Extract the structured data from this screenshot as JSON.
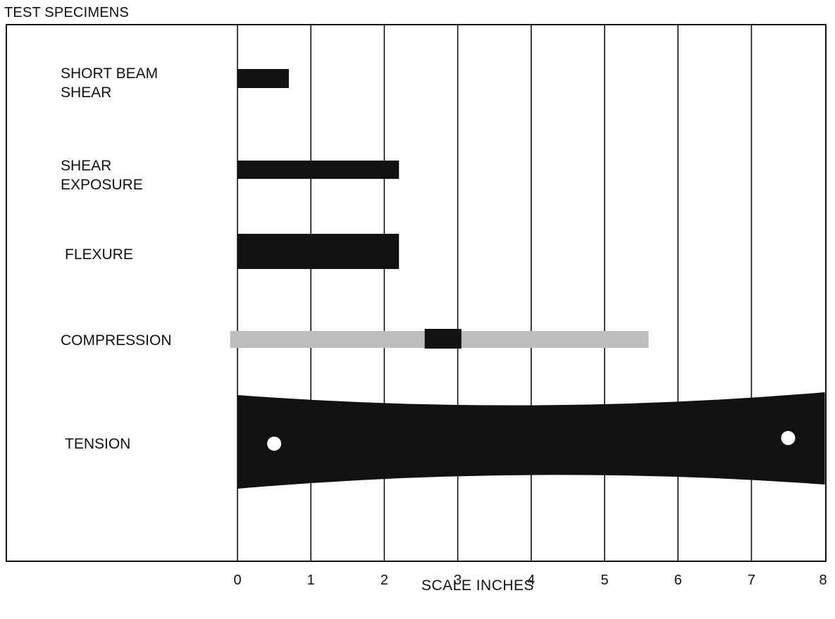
{
  "title": "TEST SPECIMENS",
  "caption": "SCALE  INCHES",
  "scale": {
    "min": 0,
    "max": 8,
    "tick_labels": [
      "0",
      "1",
      "2",
      "3",
      "4",
      "5",
      "6",
      "7",
      "8"
    ]
  },
  "specimens": [
    {
      "key": "short_beam",
      "label": "SHORT BEAM\nSHEAR",
      "start_in": 0,
      "end_in": 0.7
    },
    {
      "key": "shear_exposure",
      "label": "SHEAR\nEXPOSURE",
      "start_in": 0,
      "end_in": 2.2
    },
    {
      "key": "flexure",
      "label": "FLEXURE",
      "start_in": 0,
      "end_in": 2.2
    },
    {
      "key": "compression",
      "label": "COMPRESSION",
      "start_in": -0.1,
      "end_in": 5.6,
      "dark_start_in": 2.55,
      "dark_end_in": 3.05
    },
    {
      "key": "tension",
      "label": "TENSION",
      "start_in": 0,
      "end_in": 8,
      "hole_positions_in": [
        0.5,
        7.5
      ]
    }
  ],
  "colors": {
    "ink": "#111111",
    "grey": "#bdbdbd"
  }
}
